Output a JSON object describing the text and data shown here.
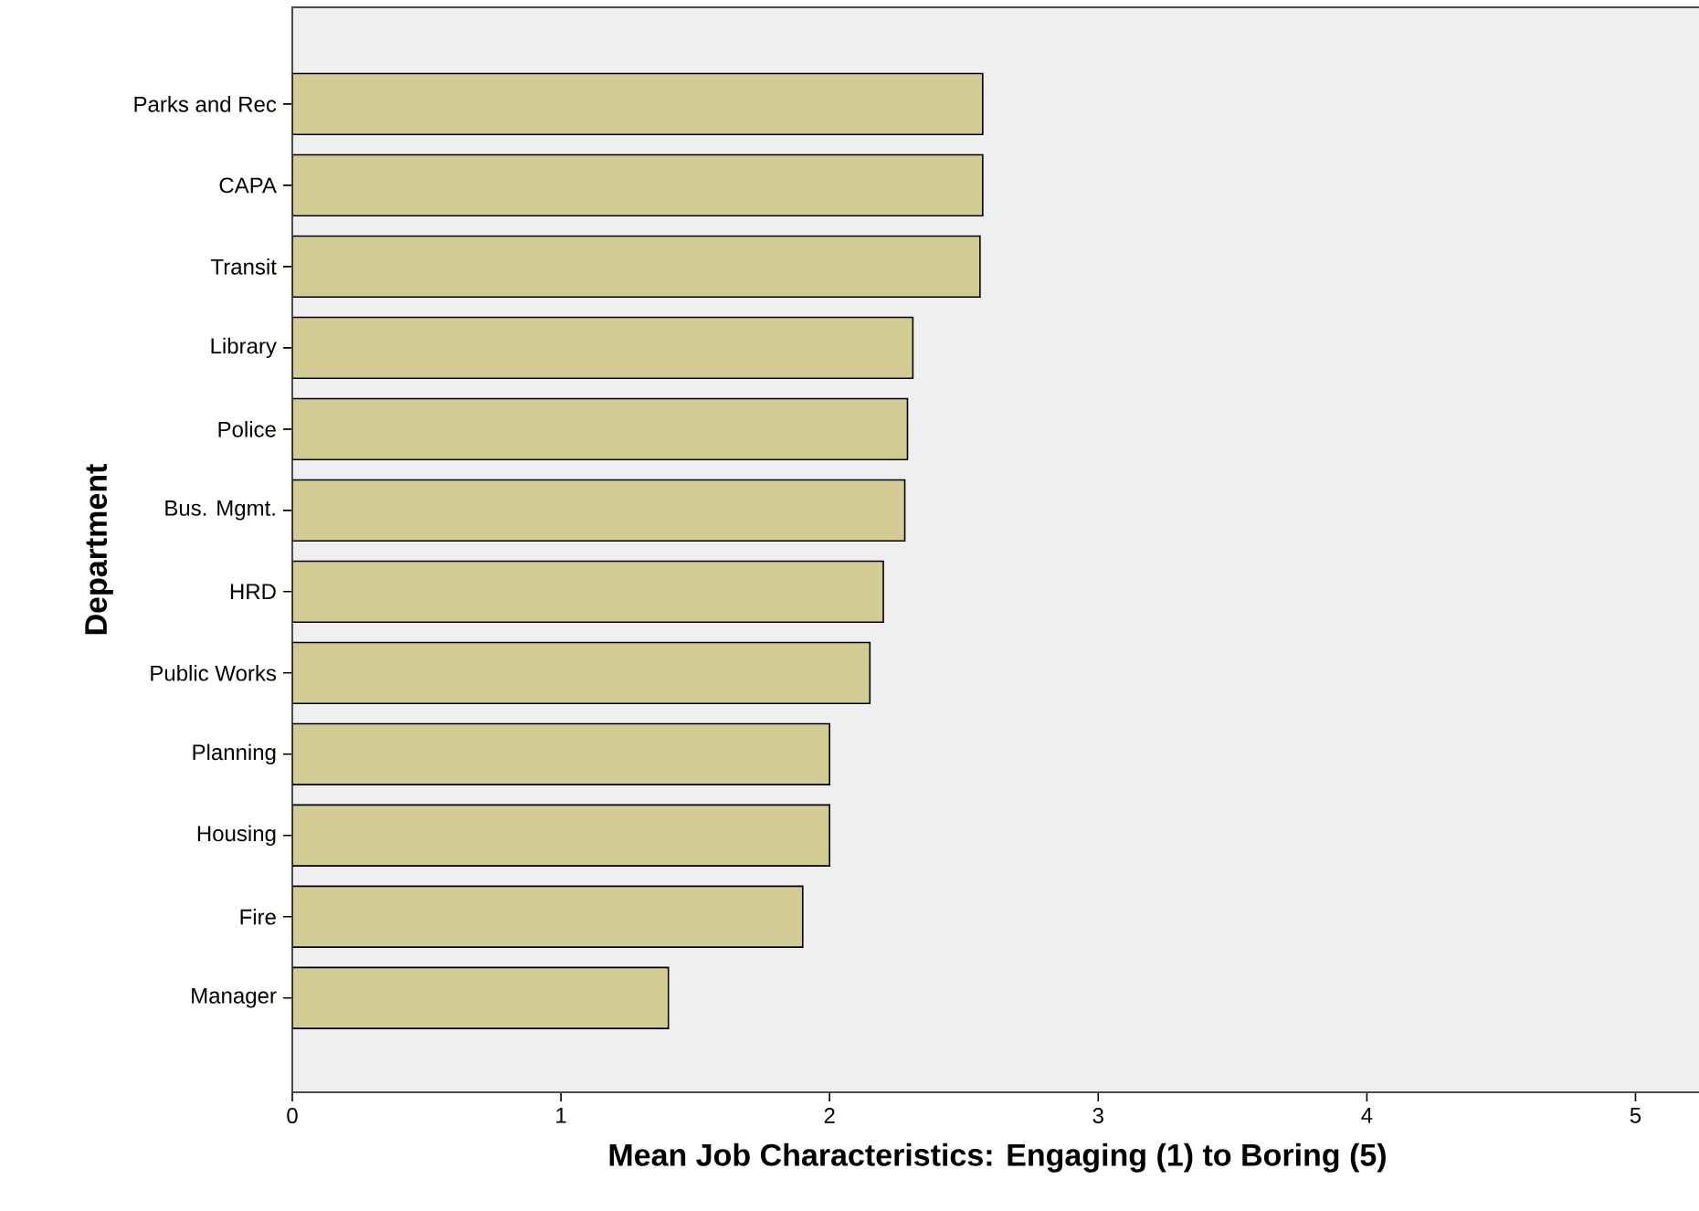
{
  "chart_data": {
    "type": "bar",
    "orientation": "horizontal",
    "categories": [
      "Parks and Rec",
      "CAPA",
      "Transit",
      "Library",
      "Police",
      "Bus. Mgmt.",
      "HRD",
      "Public Works",
      "Planning",
      "Housing",
      "Fire",
      "Manager"
    ],
    "values": [
      2.57,
      2.57,
      2.56,
      2.31,
      2.29,
      2.28,
      2.2,
      2.15,
      2.0,
      2.0,
      1.9,
      1.4
    ],
    "color": "#d2cc94",
    "xlabel": "Mean Job Characteristics: Engaging (1) to Boring (5)",
    "ylabel": "Department",
    "xlim": [
      0,
      5.25
    ],
    "xticks": [
      0,
      1,
      2,
      3,
      4,
      5
    ]
  }
}
